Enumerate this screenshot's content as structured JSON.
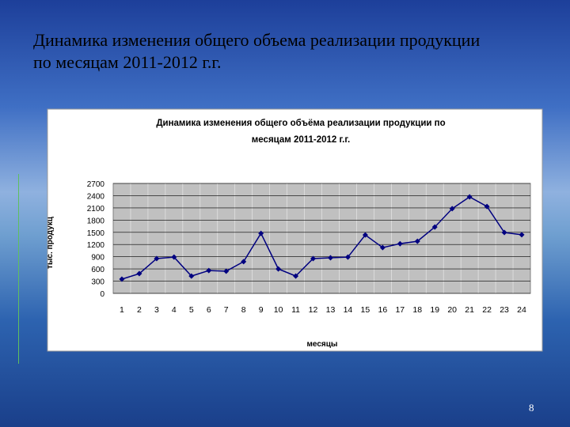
{
  "slide": {
    "title_lines": [
      "Динамика изменения общего объема реализации продукции",
      "по месяцам 2011-2012 г.г."
    ],
    "page_number": "8"
  },
  "chart_data": {
    "type": "line",
    "title": [
      "Динамика изменения общего объёма реализации продукции по",
      "месяцам 2011-2012 г.г."
    ],
    "x_label": "месяцы",
    "y_label": "тыс. продукц",
    "categories": [
      "1",
      "2",
      "3",
      "4",
      "5",
      "6",
      "7",
      "8",
      "9",
      "10",
      "11",
      "12",
      "13",
      "14",
      "15",
      "16",
      "17",
      "18",
      "19",
      "20",
      "21",
      "22",
      "23",
      "24"
    ],
    "series": [
      {
        "color": "#000080",
        "values": [
          350,
          485,
          855,
          890,
          425,
          560,
          545,
          780,
          1475,
          600,
          425,
          855,
          875,
          890,
          1435,
          1125,
          1220,
          1280,
          1630,
          2080,
          2370,
          2135,
          1495,
          1440
        ]
      }
    ],
    "ylim": [
      0,
      2700
    ],
    "yticks": [
      0,
      300,
      600,
      900,
      1200,
      1500,
      1800,
      2100,
      2400,
      2700
    ],
    "grid": true
  }
}
